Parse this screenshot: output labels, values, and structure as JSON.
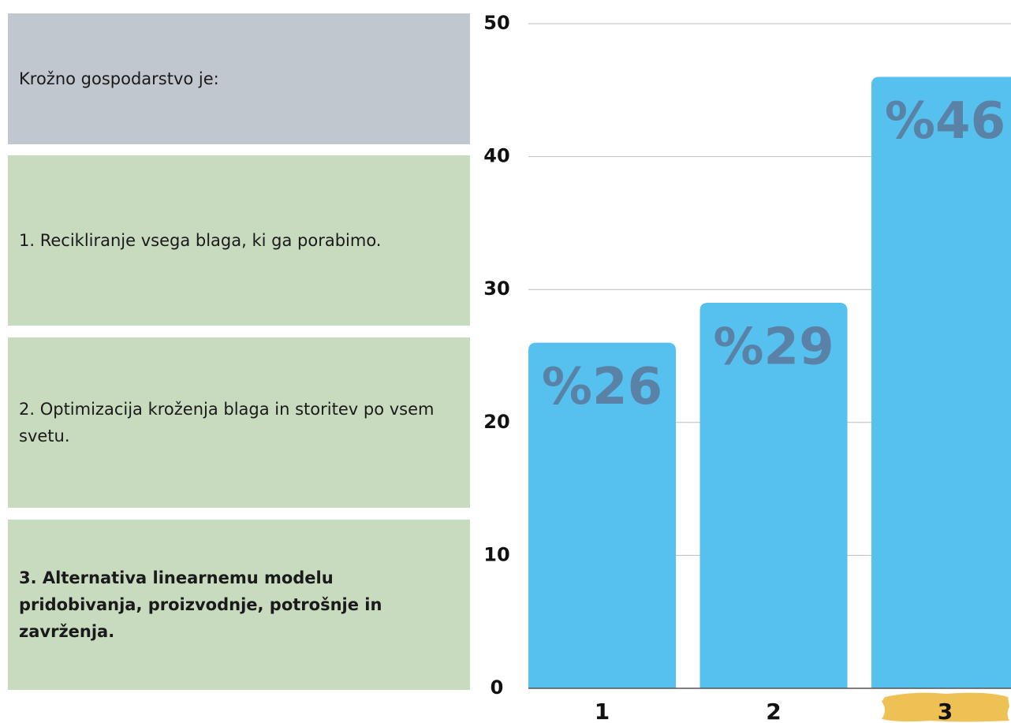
{
  "panel": {
    "question": "Krožno gospodarstvo je:",
    "options": [
      "1. Recikliranje vsega blaga, ki ga porabimo.",
      "2. Optimizacija kroženja blaga in storitev po vsem svetu.",
      "3. Alternativa linearnemu modelu pridobivanja, proizvodnje, potrošnje in zavrženja."
    ]
  },
  "chart_data": {
    "type": "bar",
    "categories": [
      "1",
      "2",
      "3"
    ],
    "values": [
      26,
      29,
      46
    ],
    "value_labels": [
      "%26",
      "%29",
      "%46"
    ],
    "color": "#56c1ef",
    "ylim": [
      0,
      50
    ],
    "yticks": [
      0,
      10,
      20,
      30,
      40,
      50
    ],
    "grid": true
  }
}
